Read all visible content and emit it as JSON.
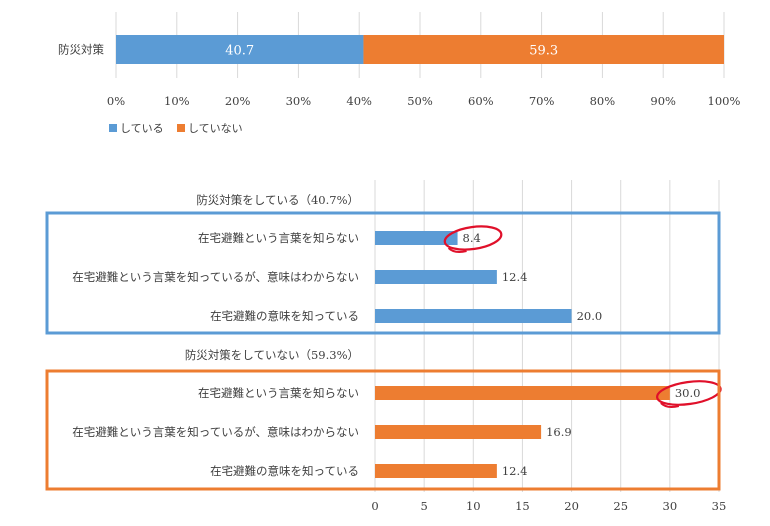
{
  "chart_data": [
    {
      "type": "bar",
      "orientation": "horizontal",
      "stacked": true,
      "categories": [
        "防災対策"
      ],
      "series": [
        {
          "name": "している",
          "values": [
            40.7
          ],
          "color": "#5b9bd5"
        },
        {
          "name": "していない",
          "values": [
            59.3
          ],
          "color": "#ed7d31"
        }
      ],
      "xlim": [
        0,
        100
      ],
      "xticks": [
        "0%",
        "10%",
        "20%",
        "30%",
        "40%",
        "50%",
        "60%",
        "70%",
        "80%",
        "90%",
        "100%"
      ],
      "grid": true,
      "legend": "bottom-left"
    },
    {
      "type": "bar",
      "orientation": "horizontal",
      "xlim": [
        0,
        35
      ],
      "xticks": [
        0,
        5,
        10,
        15,
        20,
        25,
        30,
        35
      ],
      "grid": true,
      "groups": [
        {
          "title": "防災対策をしている（40.7%）",
          "color": "#5b9bd5",
          "box_color": "#5b9bd5",
          "items": [
            {
              "label": "在宅避難という言葉を知らない",
              "value": 8.4,
              "value_label": "8.4",
              "circled": true
            },
            {
              "label": "在宅避難という言葉を知っているが、意味はわからない",
              "value": 12.4,
              "value_label": "12.4"
            },
            {
              "label": "在宅避難の意味を知っている",
              "value": 20.0,
              "value_label": "20.0"
            }
          ]
        },
        {
          "title": "防災対策をしていない（59.3%）",
          "color": "#ed7d31",
          "box_color": "#ed7d31",
          "items": [
            {
              "label": "在宅避難という言葉を知らない",
              "value": 30.0,
              "value_label": "30.0",
              "circled": true
            },
            {
              "label": "在宅避難という言葉を知っているが、意味はわからない",
              "value": 16.9,
              "value_label": "16.9"
            },
            {
              "label": "在宅避難の意味を知っている",
              "value": 12.4,
              "value_label": "12.4"
            }
          ]
        }
      ]
    }
  ],
  "colors": {
    "gridline": "#d9d9d9",
    "circle_annotation": "#e0102a",
    "text": "#404040"
  }
}
